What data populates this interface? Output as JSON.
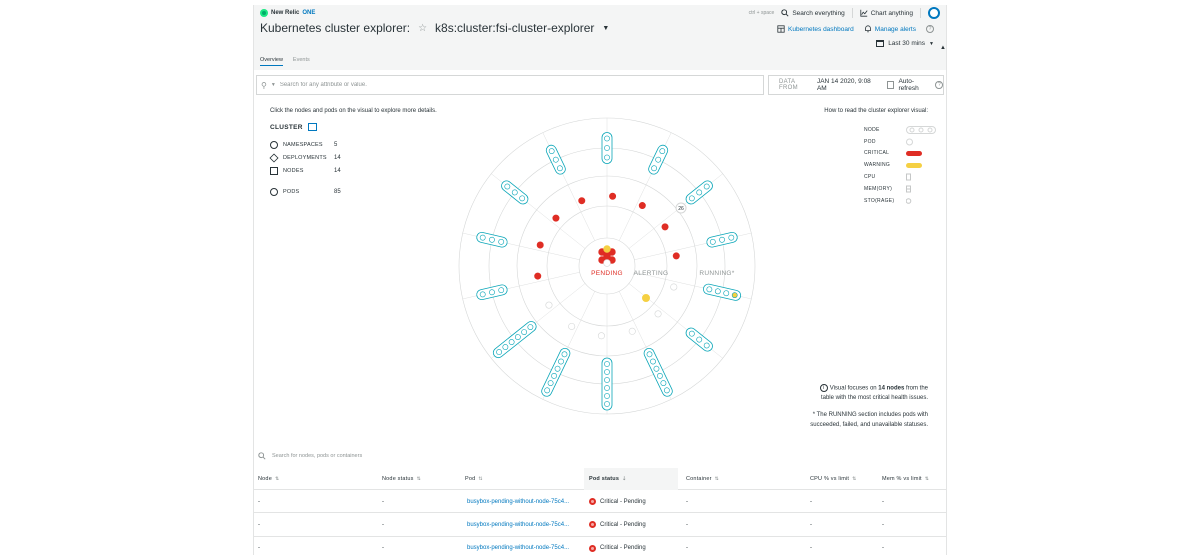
{
  "header": {
    "logo_text": "New Relic",
    "logo_one": "ONE",
    "shortcut": "ctrl + space",
    "search_label": "Search everything",
    "chart_label": "Chart anything",
    "page_title": "Kubernetes cluster explorer:",
    "cluster_name": "k8s:cluster:fsi-cluster-explorer",
    "dashboard_label": "Kubernetes dashboard",
    "alerts_label": "Manage alerts",
    "time_label": "Last 30 mins"
  },
  "tabs": [
    {
      "label": "Overview",
      "active": true
    },
    {
      "label": "Events",
      "active": false
    }
  ],
  "filter": {
    "placeholder": "Search for any attribute or value.",
    "data_from_label": "DATA FROM",
    "data_from_value": "JAN 14 2020, 9:08 AM",
    "auto_refresh_label": "Auto-refresh"
  },
  "left_panel": {
    "intro": "Click the nodes and pods on the visual to explore more details.",
    "cluster_label": "CLUSTER",
    "stats": [
      {
        "label": "NAMESPACES",
        "value": "5",
        "icon": "namespace-icon"
      },
      {
        "label": "DEPLOYMENTS",
        "value": "14",
        "icon": "deployment-icon"
      },
      {
        "label": "NODES",
        "value": "14",
        "icon": "node-icon"
      },
      {
        "label": "PODS",
        "value": "85",
        "icon": "pod-icon"
      }
    ]
  },
  "visual": {
    "pending_label": "PENDING",
    "alerting_label": "ALERTING",
    "running_label": "RUNNING*",
    "badge": "26",
    "colors": {
      "critical": "#df2d24",
      "warning": "#f5d043",
      "ok": "#ffffff",
      "ring": "#d5d7d7",
      "node_border": "#0aa6b8"
    }
  },
  "legend": {
    "title": "How to read the cluster explorer visual:",
    "rows": [
      {
        "label": "NODE",
        "swatch": "node"
      },
      {
        "label": "POD",
        "swatch": "pod"
      },
      {
        "label": "CRITICAL",
        "swatch": "#df2d24"
      },
      {
        "label": "WARNING",
        "swatch": "#f5d043"
      },
      {
        "label": "CPU",
        "swatch": "cpu"
      },
      {
        "label": "MEM(ORY)",
        "swatch": "mem"
      },
      {
        "label": "STO(RAGE)",
        "swatch": "sto"
      }
    ]
  },
  "notes": {
    "visual_focus_pre": "Visual focuses on",
    "visual_focus_count": "14 nodes",
    "visual_focus_post": "from the table with the most critical health issues.",
    "running_note_pre": "* The",
    "running_note_bold": "RUNNING",
    "running_note_post": "section includes pods with succeeded, failed, and unavailable statuses."
  },
  "table": {
    "search_placeholder": "Search for nodes, pods or containers",
    "columns": [
      "Node",
      "Node status",
      "Pod",
      "Pod status",
      "Container",
      "CPU % vs limit",
      "Mem % vs limit"
    ],
    "rows": [
      {
        "node": "-",
        "node_status": "-",
        "pod": "busybox-pending-without-node-75c4...",
        "pod_status": "Critical - Pending",
        "container": "-",
        "cpu": "-",
        "mem": "-"
      },
      {
        "node": "-",
        "node_status": "-",
        "pod": "busybox-pending-without-node-75c4...",
        "pod_status": "Critical - Pending",
        "container": "-",
        "cpu": "-",
        "mem": "-"
      },
      {
        "node": "-",
        "node_status": "-",
        "pod": "busybox-pending-without-node-75c4...",
        "pod_status": "Critical - Pending",
        "container": "-",
        "cpu": "-",
        "mem": "-"
      }
    ]
  }
}
